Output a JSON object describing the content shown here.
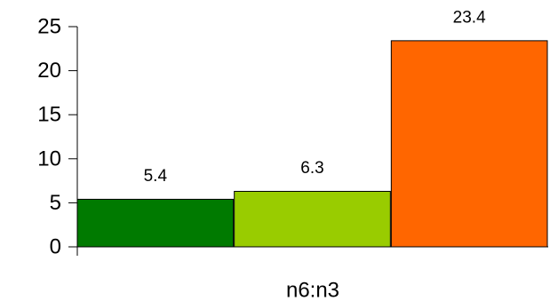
{
  "chart_data": {
    "type": "bar",
    "categories": [
      "n6:n3"
    ],
    "series": [
      {
        "values": [
          5.4
        ],
        "color": "#007a00"
      },
      {
        "values": [
          6.3
        ],
        "color": "#99cc00"
      },
      {
        "values": [
          23.4
        ],
        "color": "#ff6600"
      }
    ],
    "data_labels": [
      "5.4",
      "6.3",
      "23.4"
    ],
    "ylim": [
      0,
      25
    ],
    "yticks": [
      0,
      5,
      10,
      15,
      20,
      25
    ],
    "ytick_labels": [
      "0",
      "5",
      "10",
      "15",
      "20",
      "25"
    ],
    "grid": false,
    "legend": "none",
    "title": "",
    "xlabel": "",
    "ylabel": ""
  }
}
